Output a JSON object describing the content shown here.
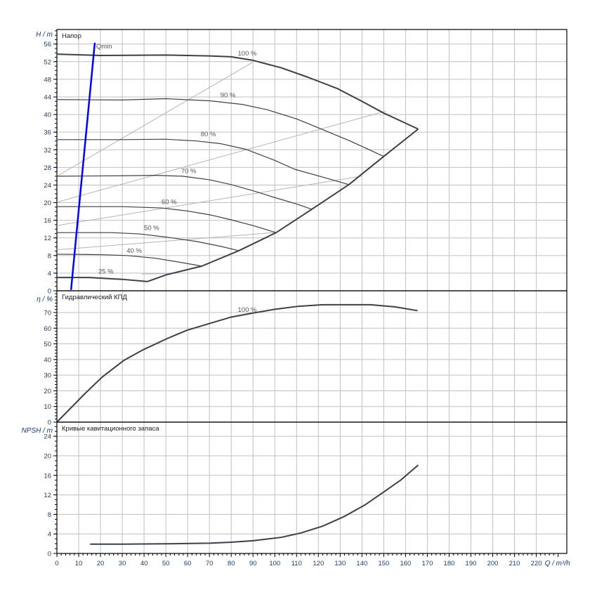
{
  "chart_data": [
    {
      "type": "line",
      "title": "Напор",
      "ylabel": "H / m",
      "xlabel": "Q / m³/h",
      "xlim": [
        0,
        234
      ],
      "ylim": [
        0,
        59.3
      ],
      "xticks": [
        0,
        10,
        20,
        30,
        40,
        50,
        60,
        70,
        80,
        90,
        100,
        110,
        120,
        130,
        140,
        150,
        160,
        170,
        180,
        190,
        200,
        210,
        220
      ],
      "yticks": [
        0,
        4,
        8,
        12,
        16,
        20,
        24,
        28,
        32,
        36,
        40,
        44,
        48,
        52,
        56
      ],
      "grid": true,
      "series": [
        {
          "name": "100 %",
          "label_at": [
            83,
            53.4
          ],
          "x": [
            0,
            20,
            50,
            70,
            80,
            90,
            103,
            115,
            128.7,
            140,
            149.7,
            158,
            165.8
          ],
          "y": [
            53.7,
            53.4,
            53.5,
            53.3,
            53.1,
            52.3,
            50.6,
            48.5,
            45.9,
            43,
            40.4,
            38.5,
            36.7
          ]
        },
        {
          "name": "90 %",
          "label_at": [
            75,
            43.9
          ],
          "x": [
            0,
            30,
            50,
            70.6,
            85,
            96.5,
            110,
            119,
            135,
            150
          ],
          "y": [
            43.4,
            43.3,
            43.6,
            43.1,
            42.3,
            41.1,
            39,
            37.2,
            33.9,
            30.5
          ]
        },
        {
          "name": "80 %",
          "label_at": [
            66,
            35.1
          ],
          "x": [
            0,
            30,
            50,
            64,
            75,
            86.8,
            100,
            109,
            122,
            134
          ],
          "y": [
            34.3,
            34.3,
            34.4,
            34,
            33.4,
            32.1,
            29.6,
            27.6,
            25.8,
            24.1
          ]
        },
        {
          "name": "70 %",
          "label_at": [
            57,
            26.7
          ],
          "x": [
            0,
            30,
            45,
            57.7,
            70,
            80,
            90,
            99.7,
            110,
            117
          ],
          "y": [
            26,
            26.1,
            26.2,
            26,
            25.2,
            24.1,
            22.7,
            21.2,
            19.7,
            18.5
          ]
        },
        {
          "name": "60 %",
          "label_at": [
            48,
            19.7
          ],
          "x": [
            0,
            30,
            48,
            60,
            70.6,
            80,
            90,
            100.6
          ],
          "y": [
            19.1,
            19.1,
            18.8,
            18.1,
            17.2,
            16.1,
            14.8,
            13.2
          ]
        },
        {
          "name": "50 %",
          "label_at": [
            40,
            13.8
          ],
          "x": [
            0,
            25,
            38,
            50,
            64,
            75,
            83.5
          ],
          "y": [
            13.2,
            13.2,
            12.9,
            12.2,
            11.2,
            10.1,
            9.1
          ]
        },
        {
          "name": "40 %",
          "label_at": [
            32,
            8.6
          ],
          "x": [
            0,
            20,
            32,
            45,
            55,
            66.5
          ],
          "y": [
            8.3,
            8.2,
            8,
            7.4,
            6.6,
            5.6
          ]
        },
        {
          "name": "25 %",
          "label_at": [
            19,
            3.9
          ],
          "x": [
            0,
            15,
            22,
            30,
            41.6
          ],
          "y": [
            3,
            3,
            2.8,
            2.6,
            2.1
          ]
        },
        {
          "name": "envelope",
          "x": [
            41.6,
            50,
            66.5,
            83.5,
            100.6,
            117,
            134,
            150,
            165.8
          ],
          "y": [
            2.1,
            3.6,
            5.6,
            9.1,
            13.2,
            18.5,
            24.1,
            30.5,
            36.7
          ]
        },
        {
          "name": "Qmin",
          "label_at": [
            18,
            55
          ],
          "x": [
            6.5,
            17.4
          ],
          "y": [
            0.2,
            56.3
          ]
        }
      ],
      "efficiency_parabolas": [
        {
          "x": [
            0,
            89.7
          ],
          "y": [
            26,
            51.8
          ]
        },
        {
          "x": [
            0,
            151
          ],
          "y": [
            20.1,
            40.8
          ]
        },
        {
          "x": [
            0,
            139.7
          ],
          "y": [
            14.8,
            26
          ]
        },
        {
          "x": [
            0,
            99.7
          ],
          "y": [
            9.3,
            13.2
          ]
        },
        {
          "x": [
            39,
            52
          ],
          "y": [
            3.8,
            3.9
          ]
        }
      ]
    },
    {
      "type": "line",
      "title": "Гидравлический КПД",
      "ylabel": "η / %",
      "ylim": [
        0,
        83.9
      ],
      "yticks": [
        0,
        10,
        20,
        30,
        40,
        50,
        60,
        70
      ],
      "grid": true,
      "series": [
        {
          "name": "100 %",
          "label_at": [
            83,
            70.5
          ],
          "x": [
            0,
            13,
            20.8,
            30.8,
            39.7,
            50.8,
            59.7,
            79.7,
            89.7,
            99.7,
            110.9,
            122,
            144,
            155.4,
            165.5
          ],
          "y": [
            0,
            18.4,
            28.8,
            39.5,
            46.3,
            53.5,
            58.7,
            67,
            69.6,
            72,
            74,
            75,
            75,
            73.6,
            71.2
          ]
        }
      ]
    },
    {
      "type": "line",
      "title": "Кривые кавитационного запаса",
      "ylabel": "NPSH / m",
      "ylim": [
        0,
        26.9
      ],
      "yticks": [
        0,
        4,
        8,
        12,
        16,
        20,
        24
      ],
      "grid": true,
      "series": [
        {
          "name": "NPSH",
          "x": [
            15.2,
            30,
            54.5,
            70,
            80,
            90,
            103,
            112,
            122,
            132,
            141.6,
            150,
            158,
            165.8
          ],
          "y": [
            1.9,
            1.9,
            2,
            2.1,
            2.3,
            2.6,
            3.3,
            4.2,
            5.6,
            7.6,
            10,
            12.6,
            15.1,
            18.1
          ]
        }
      ]
    }
  ],
  "colors": {
    "curve": "#3a414a",
    "qmin": "#0000ff",
    "grid": "#c0c0c0",
    "parabola": "#b4b4b4",
    "axis_text": "#1c3d6e"
  }
}
